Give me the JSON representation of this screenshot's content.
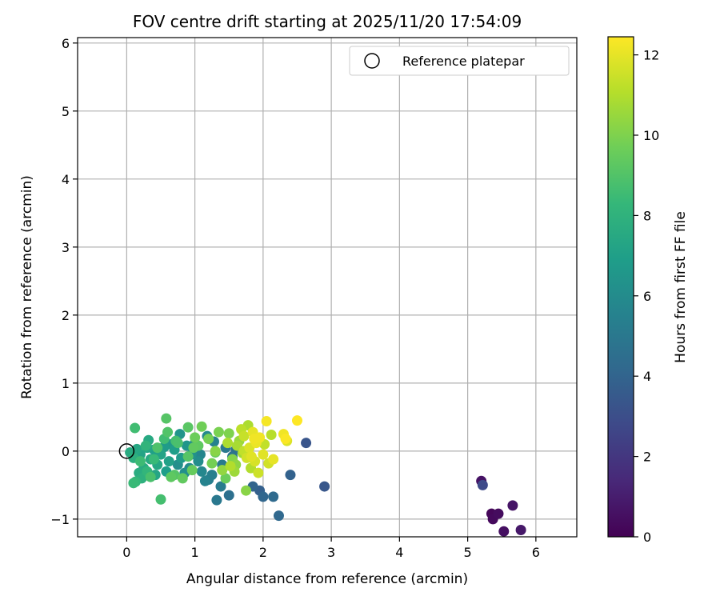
{
  "chart_data": {
    "type": "scatter",
    "title": "FOV centre drift starting at 2025/11/20 17:54:09",
    "xlabel": "Angular distance from reference (arcmin)",
    "ylabel": "Rotation from reference (arcmin)",
    "xlim": [
      -0.72,
      6.6
    ],
    "ylim": [
      -1.26,
      6.08
    ],
    "xticks": [
      0,
      1,
      2,
      3,
      4,
      5,
      6
    ],
    "yticks": [
      -1,
      0,
      1,
      2,
      3,
      4,
      5,
      6
    ],
    "grid": true,
    "legend": {
      "position": "top-right",
      "label": "Reference platepar"
    },
    "reference_point": {
      "x": 0,
      "y": 0
    },
    "colorbar": {
      "label": "Hours from first FF file",
      "range": [
        0,
        12.45
      ],
      "ticks": [
        0,
        2,
        4,
        6,
        8,
        10,
        12
      ],
      "colormap": [
        "#440154",
        "#482878",
        "#3e4989",
        "#31688e",
        "#26828e",
        "#1f9e89",
        "#35b779",
        "#6ece58",
        "#b5de2b",
        "#fde725"
      ]
    },
    "points": [
      {
        "x": 5.2,
        "y": -0.44,
        "t": 0.6
      },
      {
        "x": 5.22,
        "y": -0.5,
        "t": 2.8
      },
      {
        "x": 5.35,
        "y": -0.92,
        "t": 0.2
      },
      {
        "x": 5.37,
        "y": -1.0,
        "t": 0.3
      },
      {
        "x": 5.45,
        "y": -0.92,
        "t": 0.4
      },
      {
        "x": 5.53,
        "y": -1.18,
        "t": 0.5
      },
      {
        "x": 5.66,
        "y": -0.8,
        "t": 0.7
      },
      {
        "x": 5.78,
        "y": -1.16,
        "t": 0.8
      },
      {
        "x": 2.63,
        "y": 0.12,
        "t": 3.3
      },
      {
        "x": 2.9,
        "y": -0.52,
        "t": 3.4
      },
      {
        "x": 2.4,
        "y": -0.35,
        "t": 3.9
      },
      {
        "x": 2.23,
        "y": -0.95,
        "t": 4.2
      },
      {
        "x": 2.15,
        "y": -0.67,
        "t": 4.3
      },
      {
        "x": 2.0,
        "y": -0.67,
        "t": 4.1
      },
      {
        "x": 1.95,
        "y": -0.58,
        "t": 3.8
      },
      {
        "x": 1.85,
        "y": -0.52,
        "t": 4.0
      },
      {
        "x": 1.5,
        "y": -0.65,
        "t": 4.6
      },
      {
        "x": 1.32,
        "y": -0.72,
        "t": 5.0
      },
      {
        "x": 1.38,
        "y": -0.52,
        "t": 5.2
      },
      {
        "x": 1.2,
        "y": -0.42,
        "t": 5.3
      },
      {
        "x": 1.15,
        "y": -0.44,
        "t": 5.6
      },
      {
        "x": 1.25,
        "y": -0.35,
        "t": 5.4
      },
      {
        "x": 1.1,
        "y": -0.3,
        "t": 5.8
      },
      {
        "x": 1.28,
        "y": 0.14,
        "t": 5.5
      },
      {
        "x": 1.18,
        "y": 0.22,
        "t": 5.9
      },
      {
        "x": 1.05,
        "y": -0.15,
        "t": 6.1
      },
      {
        "x": 0.95,
        "y": -0.05,
        "t": 6.3
      },
      {
        "x": 0.88,
        "y": 0.08,
        "t": 6.5
      },
      {
        "x": 0.92,
        "y": -0.25,
        "t": 6.0
      },
      {
        "x": 0.8,
        "y": -0.1,
        "t": 6.7
      },
      {
        "x": 0.75,
        "y": -0.2,
        "t": 6.2
      },
      {
        "x": 0.7,
        "y": 0.02,
        "t": 6.9
      },
      {
        "x": 0.62,
        "y": -0.15,
        "t": 7.1
      },
      {
        "x": 0.55,
        "y": 0.06,
        "t": 6.8
      },
      {
        "x": 0.5,
        "y": -0.05,
        "t": 7.2
      },
      {
        "x": 0.45,
        "y": -0.2,
        "t": 7.4
      },
      {
        "x": 0.4,
        "y": 0.02,
        "t": 7.0
      },
      {
        "x": 0.35,
        "y": -0.12,
        "t": 7.5
      },
      {
        "x": 0.3,
        "y": 0.05,
        "t": 7.3
      },
      {
        "x": 0.25,
        "y": -0.25,
        "t": 7.6
      },
      {
        "x": 0.2,
        "y": -0.05,
        "t": 7.2
      },
      {
        "x": 0.18,
        "y": -0.32,
        "t": 7.7
      },
      {
        "x": 0.15,
        "y": 0.03,
        "t": 7.4
      },
      {
        "x": 0.1,
        "y": -0.1,
        "t": 7.8
      },
      {
        "x": 0.05,
        "y": -0.02,
        "t": 7.6
      },
      {
        "x": 0.22,
        "y": -0.4,
        "t": 7.9
      },
      {
        "x": 0.32,
        "y": 0.16,
        "t": 7.5
      },
      {
        "x": 0.42,
        "y": -0.35,
        "t": 7.3
      },
      {
        "x": 0.58,
        "y": -0.3,
        "t": 6.9
      },
      {
        "x": 0.65,
        "y": 0.1,
        "t": 6.6
      },
      {
        "x": 0.78,
        "y": 0.25,
        "t": 6.4
      },
      {
        "x": 0.85,
        "y": -0.32,
        "t": 6.2
      },
      {
        "x": 1.0,
        "y": 0.12,
        "t": 6.0
      },
      {
        "x": 1.08,
        "y": -0.05,
        "t": 5.7
      },
      {
        "x": 1.4,
        "y": -0.2,
        "t": 5.1
      },
      {
        "x": 1.45,
        "y": 0.05,
        "t": 5.0
      },
      {
        "x": 1.55,
        "y": -0.08,
        "t": 4.8
      },
      {
        "x": 1.6,
        "y": 0.02,
        "t": 4.7
      },
      {
        "x": 0.12,
        "y": 0.34,
        "t": 8.6
      },
      {
        "x": 0.58,
        "y": 0.48,
        "t": 9.1
      },
      {
        "x": 0.5,
        "y": -0.71,
        "t": 8.7
      },
      {
        "x": 0.1,
        "y": -0.47,
        "t": 8.4
      },
      {
        "x": 0.13,
        "y": -0.45,
        "t": 8.3
      },
      {
        "x": 0.3,
        "y": -0.3,
        "t": 8.2
      },
      {
        "x": 0.35,
        "y": -0.38,
        "t": 8.8
      },
      {
        "x": 0.2,
        "y": -0.15,
        "t": 8.5
      },
      {
        "x": 0.45,
        "y": 0.05,
        "t": 8.9
      },
      {
        "x": 0.6,
        "y": 0.28,
        "t": 9.0
      },
      {
        "x": 0.65,
        "y": -0.38,
        "t": 9.3
      },
      {
        "x": 0.7,
        "y": -0.35,
        "t": 9.1
      },
      {
        "x": 0.72,
        "y": 0.15,
        "t": 8.7
      },
      {
        "x": 0.82,
        "y": -0.4,
        "t": 9.4
      },
      {
        "x": 0.9,
        "y": 0.35,
        "t": 9.2
      },
      {
        "x": 0.96,
        "y": -0.28,
        "t": 9.5
      },
      {
        "x": 1.0,
        "y": 0.2,
        "t": 9.6
      },
      {
        "x": 1.05,
        "y": 0.08,
        "t": 9.3
      },
      {
        "x": 1.1,
        "y": 0.36,
        "t": 9.7
      },
      {
        "x": 1.2,
        "y": 0.18,
        "t": 9.8
      },
      {
        "x": 1.3,
        "y": -0.02,
        "t": 9.5
      },
      {
        "x": 1.35,
        "y": 0.28,
        "t": 9.9
      },
      {
        "x": 1.45,
        "y": -0.4,
        "t": 9.6
      },
      {
        "x": 1.5,
        "y": 0.26,
        "t": 10.0
      },
      {
        "x": 1.55,
        "y": -0.12,
        "t": 10.1
      },
      {
        "x": 1.6,
        "y": -0.2,
        "t": 10.3
      },
      {
        "x": 1.65,
        "y": 0.15,
        "t": 10.5
      },
      {
        "x": 1.7,
        "y": -0.03,
        "t": 10.7
      },
      {
        "x": 1.75,
        "y": -0.58,
        "t": 10.2
      },
      {
        "x": 1.78,
        "y": 0.38,
        "t": 10.9
      },
      {
        "x": 1.82,
        "y": -0.25,
        "t": 11.0
      },
      {
        "x": 1.68,
        "y": 0.32,
        "t": 11.2
      },
      {
        "x": 1.72,
        "y": 0.22,
        "t": 11.4
      },
      {
        "x": 1.76,
        "y": -0.1,
        "t": 11.6
      },
      {
        "x": 1.8,
        "y": 0.05,
        "t": 11.8
      },
      {
        "x": 1.85,
        "y": 0.28,
        "t": 12.0
      },
      {
        "x": 1.88,
        "y": -0.15,
        "t": 11.7
      },
      {
        "x": 1.9,
        "y": 0.12,
        "t": 12.1
      },
      {
        "x": 1.93,
        "y": -0.32,
        "t": 11.5
      },
      {
        "x": 1.95,
        "y": 0.2,
        "t": 12.2
      },
      {
        "x": 2.0,
        "y": -0.05,
        "t": 11.9
      },
      {
        "x": 2.02,
        "y": 0.1,
        "t": 11.3
      },
      {
        "x": 2.05,
        "y": 0.44,
        "t": 12.3
      },
      {
        "x": 2.08,
        "y": -0.18,
        "t": 11.6
      },
      {
        "x": 2.12,
        "y": 0.24,
        "t": 11.1
      },
      {
        "x": 2.15,
        "y": -0.12,
        "t": 12.0
      },
      {
        "x": 2.3,
        "y": 0.25,
        "t": 12.2
      },
      {
        "x": 2.33,
        "y": 0.18,
        "t": 12.4
      },
      {
        "x": 2.35,
        "y": 0.15,
        "t": 11.8
      },
      {
        "x": 2.5,
        "y": 0.45,
        "t": 12.45
      },
      {
        "x": 1.62,
        "y": 0.08,
        "t": 10.8
      },
      {
        "x": 1.58,
        "y": -0.3,
        "t": 10.6
      },
      {
        "x": 1.4,
        "y": -0.28,
        "t": 10.4
      },
      {
        "x": 1.3,
        "y": 0.0,
        "t": 10.2
      },
      {
        "x": 1.25,
        "y": -0.18,
        "t": 9.8
      },
      {
        "x": 0.98,
        "y": 0.05,
        "t": 9.4
      },
      {
        "x": 0.9,
        "y": -0.08,
        "t": 9.1
      },
      {
        "x": 0.75,
        "y": 0.12,
        "t": 8.8
      },
      {
        "x": 0.55,
        "y": 0.18,
        "t": 8.6
      },
      {
        "x": 0.4,
        "y": -0.12,
        "t": 8.4
      },
      {
        "x": 0.28,
        "y": 0.08,
        "t": 8.1
      },
      {
        "x": 1.48,
        "y": 0.12,
        "t": 10.9
      },
      {
        "x": 1.52,
        "y": -0.22,
        "t": 11.0
      },
      {
        "x": 1.72,
        "y": 0.0,
        "t": 11.3
      },
      {
        "x": 1.83,
        "y": -0.08,
        "t": 11.9
      },
      {
        "x": 1.87,
        "y": 0.18,
        "t": 12.2
      }
    ]
  }
}
